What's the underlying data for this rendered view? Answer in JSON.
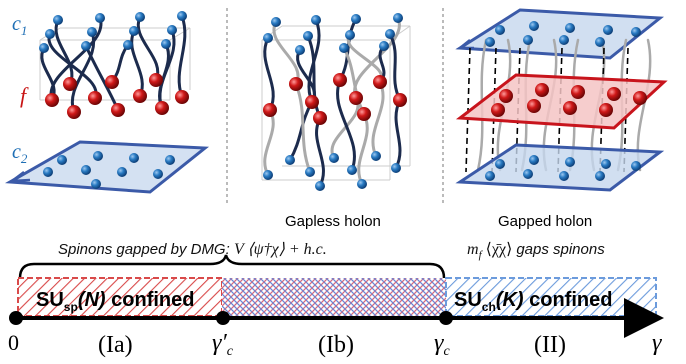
{
  "layer_labels": {
    "c1": "c",
    "c1_sub": "1",
    "f": "f",
    "c2": "c",
    "c2_sub": "2"
  },
  "panels": {
    "middle_caption": "Gapless holon",
    "right_caption": "Gapped holon"
  },
  "annotations": {
    "spinons_dmg_text": "Spinons gapped by DMG: ",
    "spinons_dmg_math": "V ⟨ψ†χ⟩ + h.c.",
    "mf_math": "m",
    "mf_sub": "f",
    "mf_bracket": " ⟨χ̄χ⟩ ",
    "mf_text": "gaps spinons"
  },
  "regions": {
    "su_sp": {
      "prefix": "SU",
      "sub": "sp",
      "arg": "(N)",
      "suffix": " confined"
    },
    "su_ch": {
      "prefix": "SU",
      "sub": "ch",
      "arg": "(K)",
      "suffix": " confined"
    }
  },
  "axis": {
    "origin": "0",
    "gamma_c_prime": "γ′",
    "gamma_c_prime_sub": "c",
    "gamma_c": "γ",
    "gamma_c_sub": "c",
    "gamma": "γ",
    "phase_Ia": "(Ia)",
    "phase_Ib": "(Ib)",
    "phase_II": "(II)"
  },
  "colors": {
    "blue_sphere": "#1f6fb5",
    "red_sphere": "#c81414",
    "plane_blue": "#c5d7ee",
    "plane_blue_edge": "#3b5aa8",
    "plane_red": "#f4c4c4",
    "plane_red_edge": "#c8141c",
    "strand_dark": "#1c2b4d",
    "strand_gray": "#aaaaaa",
    "hatch_red": "#d94a4a",
    "hatch_blue": "#5b8fd6"
  }
}
